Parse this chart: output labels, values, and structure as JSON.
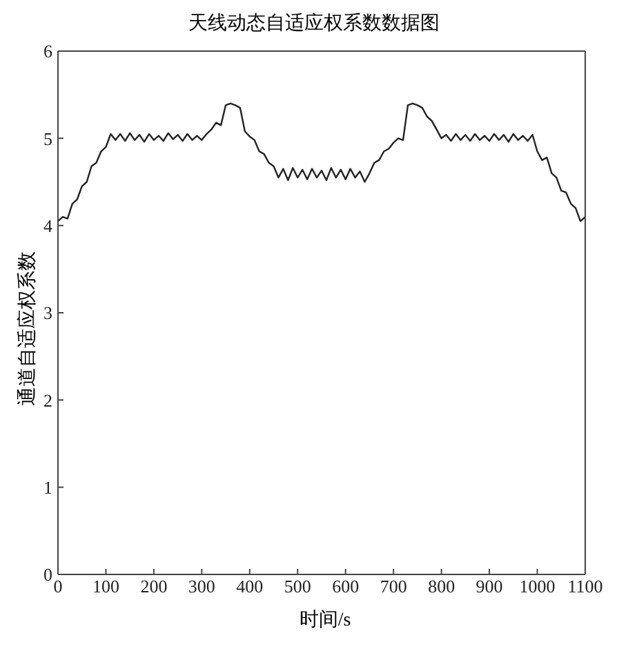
{
  "chart_data": {
    "type": "line",
    "title": "天线动态自适应权系数数据图",
    "xlabel": "时间/s",
    "ylabel": "通道自适应权系数",
    "x": [
      0,
      10,
      20,
      30,
      40,
      50,
      60,
      70,
      80,
      90,
      100,
      110,
      120,
      130,
      140,
      150,
      160,
      170,
      180,
      190,
      200,
      210,
      220,
      230,
      240,
      250,
      260,
      270,
      280,
      290,
      300,
      310,
      320,
      330,
      340,
      350,
      360,
      370,
      380,
      390,
      400,
      410,
      420,
      430,
      440,
      450,
      460,
      470,
      480,
      490,
      500,
      510,
      520,
      530,
      540,
      550,
      560,
      570,
      580,
      590,
      600,
      610,
      620,
      630,
      640,
      650,
      660,
      670,
      680,
      690,
      700,
      710,
      720,
      730,
      740,
      750,
      760,
      770,
      780,
      790,
      800,
      810,
      820,
      830,
      840,
      850,
      860,
      870,
      880,
      890,
      900,
      910,
      920,
      930,
      940,
      950,
      960,
      970,
      980,
      990,
      1000,
      1010,
      1020,
      1030,
      1040,
      1050,
      1060,
      1070,
      1080,
      1090,
      1100
    ],
    "series": [
      {
        "color": "#222222",
        "values": [
          4.05,
          4.1,
          4.08,
          4.25,
          4.3,
          4.45,
          4.5,
          4.68,
          4.72,
          4.85,
          4.9,
          5.05,
          4.98,
          5.05,
          4.97,
          5.06,
          4.98,
          5.04,
          4.96,
          5.05,
          4.98,
          5.03,
          4.97,
          5.06,
          4.99,
          5.04,
          4.97,
          5.05,
          4.98,
          5.03,
          4.98,
          5.05,
          5.1,
          5.18,
          5.15,
          5.38,
          5.4,
          5.38,
          5.35,
          5.08,
          5.02,
          4.98,
          4.85,
          4.82,
          4.72,
          4.68,
          4.55,
          4.65,
          4.52,
          4.66,
          4.55,
          4.64,
          4.53,
          4.65,
          4.55,
          4.63,
          4.52,
          4.66,
          4.55,
          4.64,
          4.53,
          4.65,
          4.55,
          4.62,
          4.5,
          4.6,
          4.72,
          4.75,
          4.85,
          4.88,
          4.95,
          5.0,
          4.98,
          5.38,
          5.4,
          5.38,
          5.35,
          5.25,
          5.2,
          5.1,
          5.0,
          5.04,
          4.97,
          5.05,
          4.98,
          5.04,
          4.97,
          5.05,
          4.98,
          5.03,
          4.97,
          5.05,
          4.98,
          5.04,
          4.96,
          5.05,
          4.98,
          5.03,
          4.97,
          5.04,
          4.85,
          4.75,
          4.78,
          4.6,
          4.55,
          4.4,
          4.38,
          4.25,
          4.2,
          4.05,
          4.1
        ]
      }
    ],
    "xlim": [
      0,
      1100
    ],
    "xticks": [
      0,
      100,
      200,
      300,
      400,
      500,
      600,
      700,
      800,
      900,
      1000,
      1100
    ],
    "ylim": [
      0,
      6
    ],
    "yticks": [
      0,
      1,
      2,
      3,
      4,
      5,
      6
    ],
    "grid": false,
    "legend": false,
    "marker": "none",
    "line_style": "solid"
  }
}
